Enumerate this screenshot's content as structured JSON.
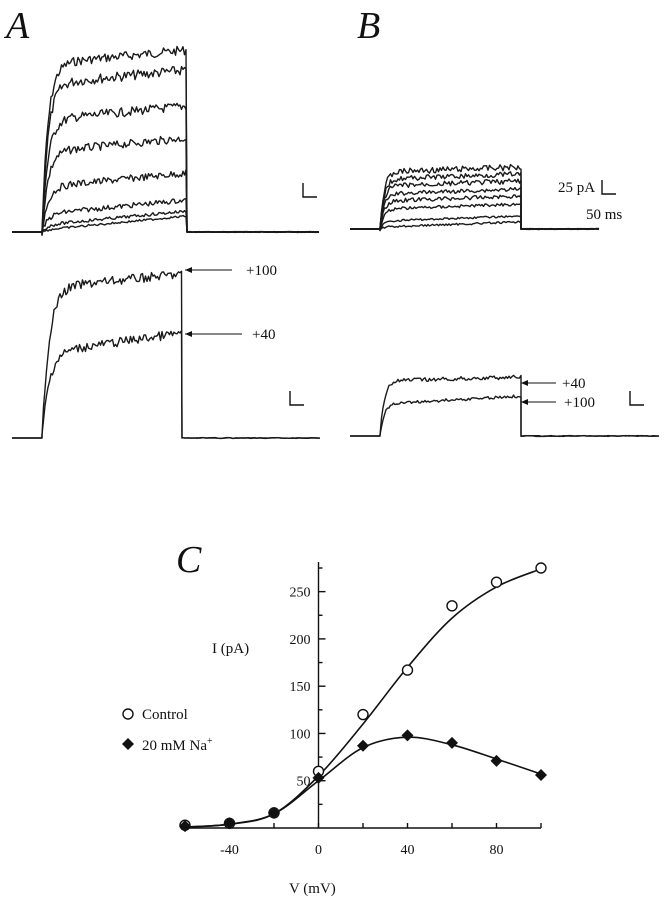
{
  "panels": {
    "a_letter": "A",
    "b_letter": "B",
    "c_letter": "C"
  },
  "scale_bar": {
    "current_label": "25 pA",
    "time_label": "50 ms"
  },
  "trace_labels": {
    "a_upper": "+100",
    "a_lower": "+40",
    "b_upper": "+40",
    "b_lower": "+100"
  },
  "chart_data": {
    "type": "scatter",
    "title": "",
    "xlabel": "V (mV)",
    "ylabel": "I (pA)",
    "xlim": [
      -60,
      100
    ],
    "ylim": [
      0,
      275
    ],
    "x_ticks": [
      "-40",
      "0",
      "40",
      "80"
    ],
    "y_ticks": [
      "50",
      "100",
      "150",
      "200",
      "250"
    ],
    "legend_position": "left",
    "series": [
      {
        "name": "Control",
        "marker": "open-circle",
        "x": [
          -60,
          -40,
          -20,
          0,
          20,
          40,
          60,
          80,
          100
        ],
        "y": [
          3,
          5,
          16,
          60,
          120,
          167,
          235,
          260,
          275
        ]
      },
      {
        "name": "20 mM Na+",
        "marker": "filled-diamond",
        "x": [
          -60,
          -40,
          -20,
          0,
          20,
          40,
          60,
          80,
          100
        ],
        "y": [
          2,
          5,
          16,
          53,
          87,
          98,
          90,
          71,
          56
        ]
      }
    ]
  },
  "legend": {
    "control": "Control",
    "sodium_prefix": "20 mM Na",
    "sodium_sup": "+"
  }
}
